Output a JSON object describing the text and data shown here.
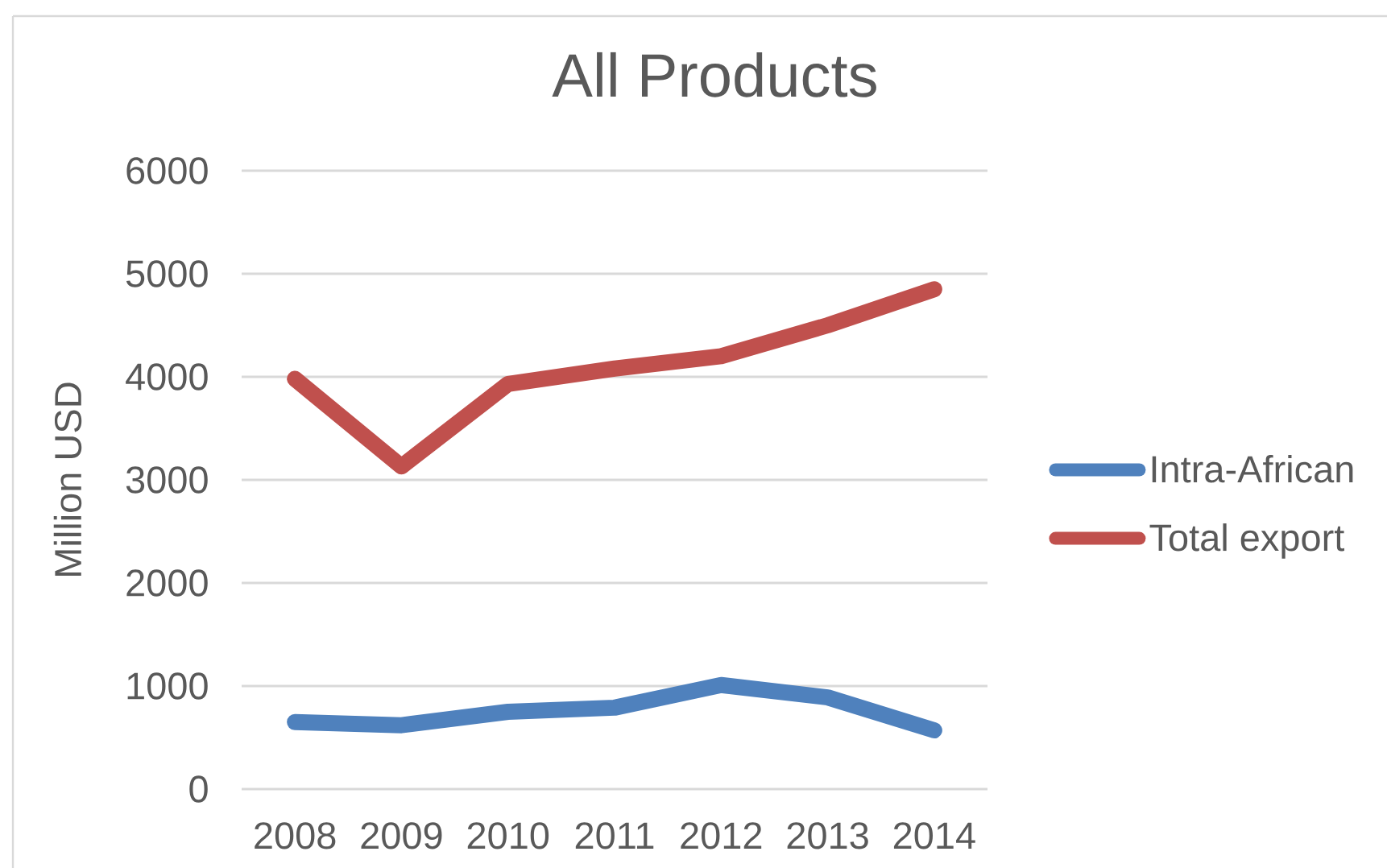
{
  "chart_data": {
    "type": "line",
    "title": "All Products",
    "ylabel": "Million USD",
    "categories": [
      "2008",
      "2009",
      "2010",
      "2011",
      "2012",
      "2013",
      "2014"
    ],
    "series": [
      {
        "name": "Intra-African",
        "color": "#4f81bd",
        "values": [
          650,
          620,
          750,
          790,
          1010,
          890,
          570
        ]
      },
      {
        "name": "Total  export",
        "color": "#c0504d",
        "values": [
          3980,
          3130,
          3930,
          4080,
          4200,
          4500,
          4850
        ]
      }
    ],
    "ylim": [
      0,
      6000
    ],
    "yticks": [
      0,
      1000,
      2000,
      3000,
      4000,
      5000,
      6000
    ],
    "grid": "y",
    "legend": "right",
    "line_style": "solid"
  }
}
